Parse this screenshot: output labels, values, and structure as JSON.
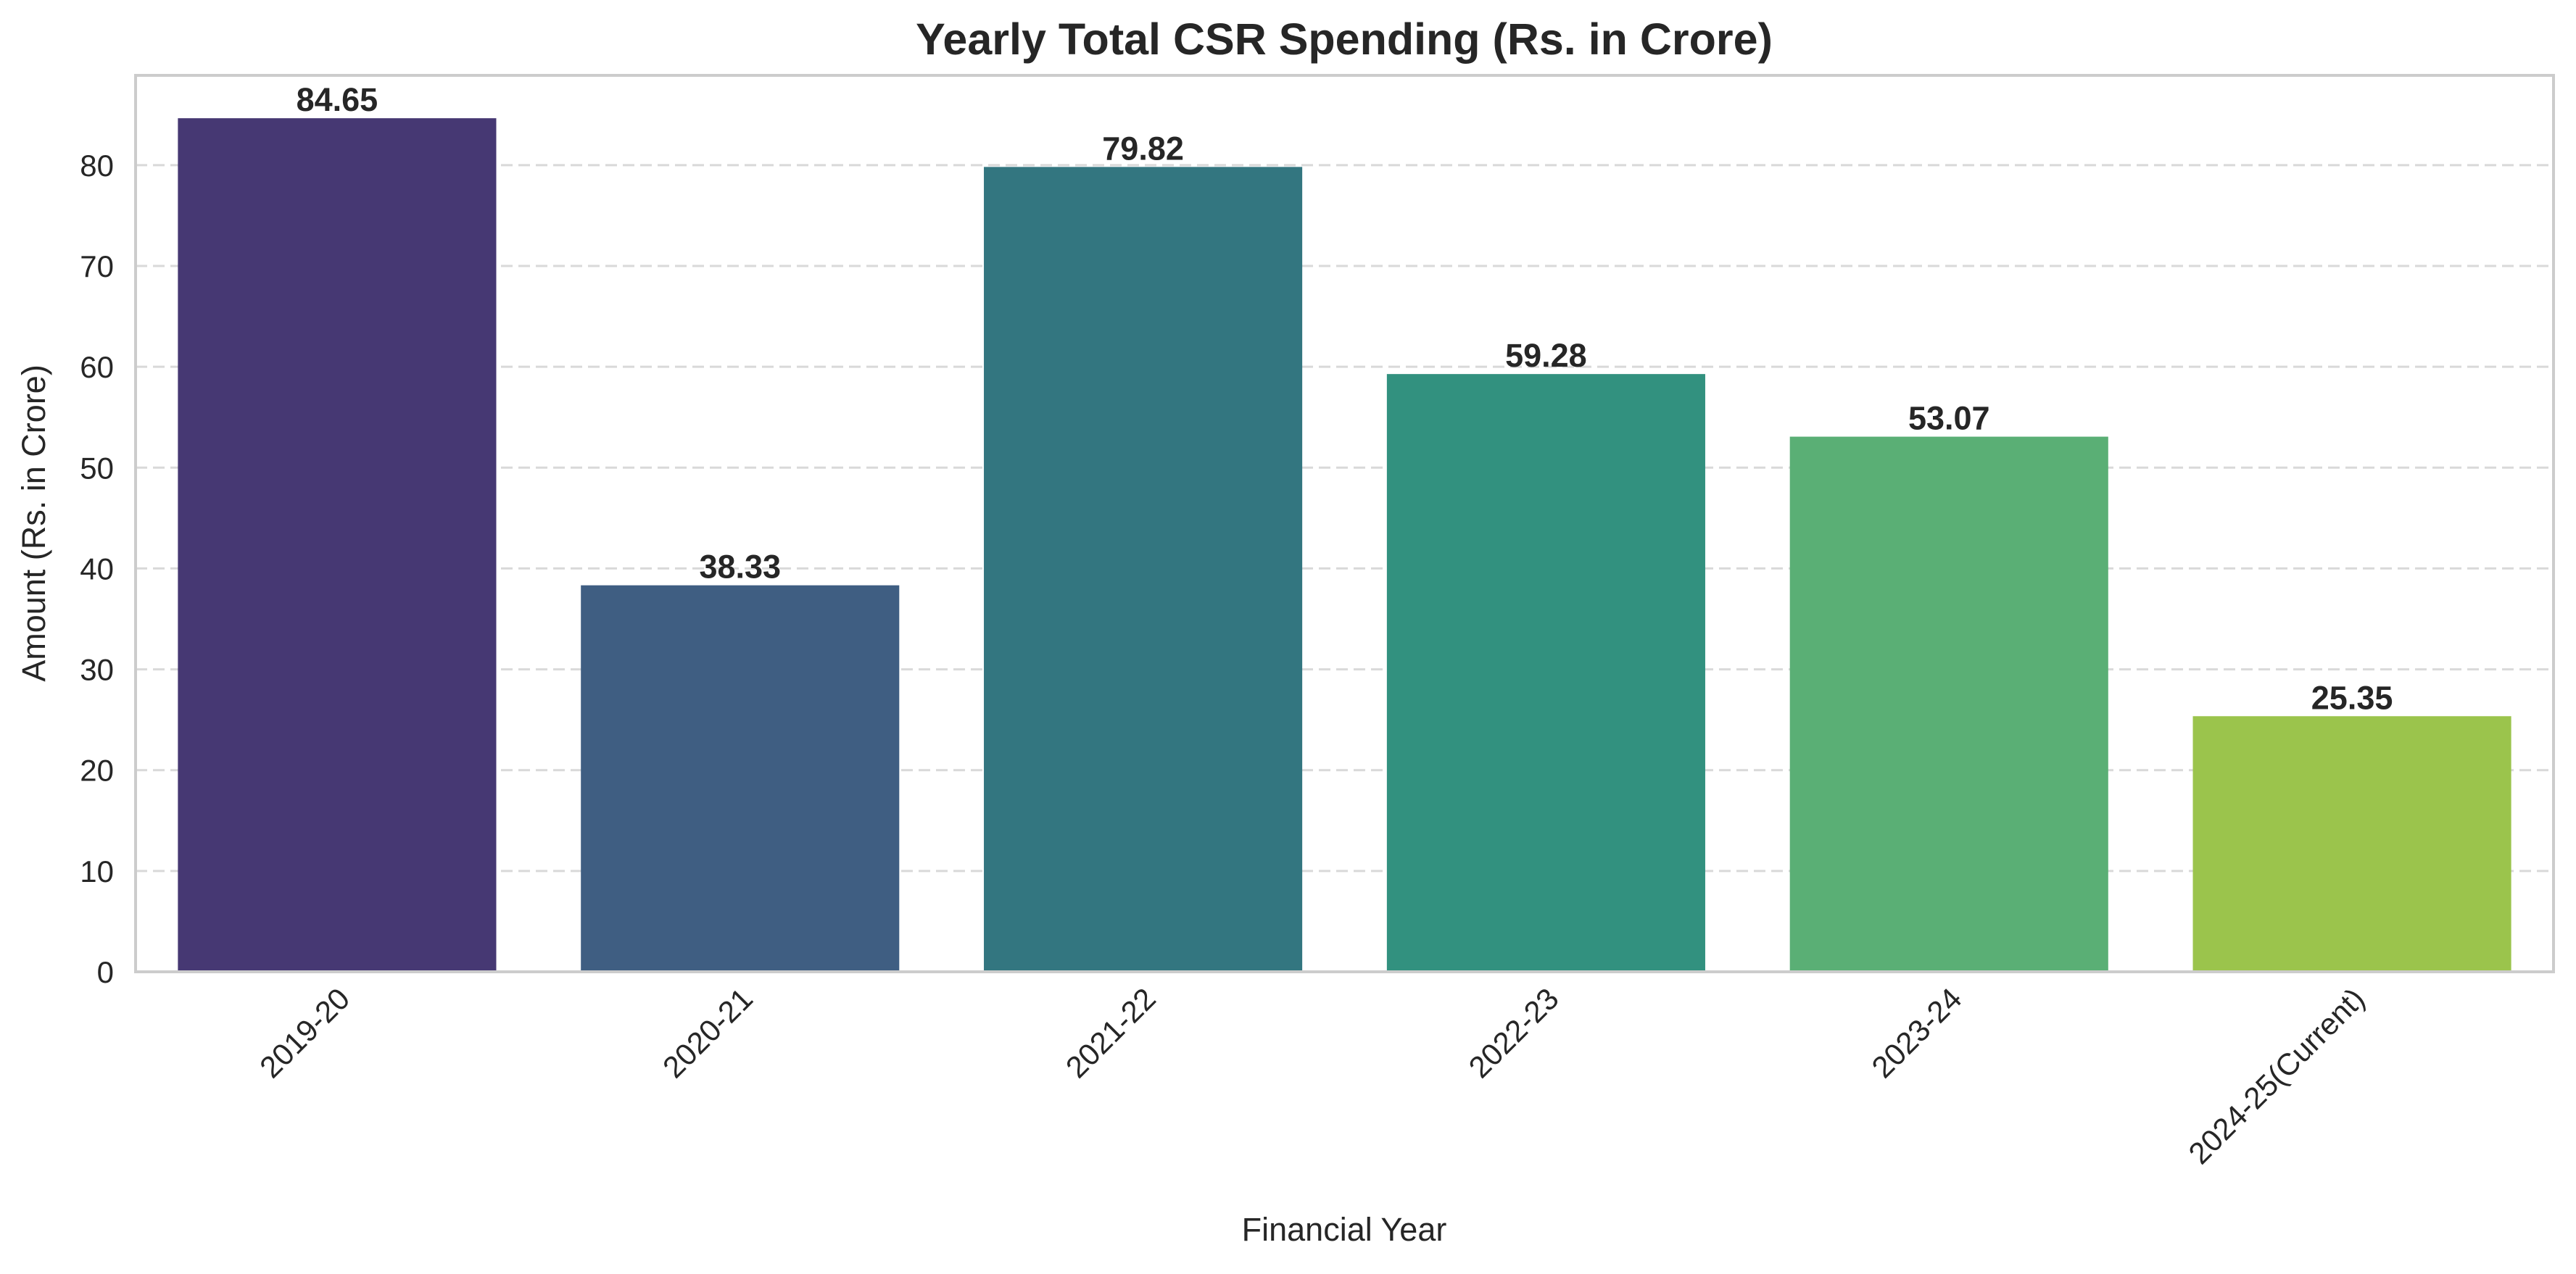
{
  "chart_data": {
    "type": "bar",
    "title": "Yearly Total CSR Spending (Rs. in Crore)",
    "xlabel": "Financial Year",
    "ylabel": "Amount (Rs. in Crore)",
    "categories": [
      "2019-20",
      "2020-21",
      "2021-22",
      "2022-23",
      "2023-24",
      "2024-25(Current)"
    ],
    "values": [
      84.65,
      38.33,
      79.82,
      59.28,
      53.07,
      25.35
    ],
    "value_labels": [
      "84.65",
      "38.33",
      "79.82",
      "59.28",
      "53.07",
      "25.35"
    ],
    "colors": [
      "#463873",
      "#3f5e82",
      "#337680",
      "#32917f",
      "#5aaf75",
      "#9bc44c"
    ],
    "ylim": [
      0,
      88.9
    ],
    "yticks": [
      0,
      10,
      20,
      30,
      40,
      50,
      60,
      70,
      80
    ],
    "grid": "horizontal dashed",
    "x_tick_rotation": "45 degrees"
  }
}
